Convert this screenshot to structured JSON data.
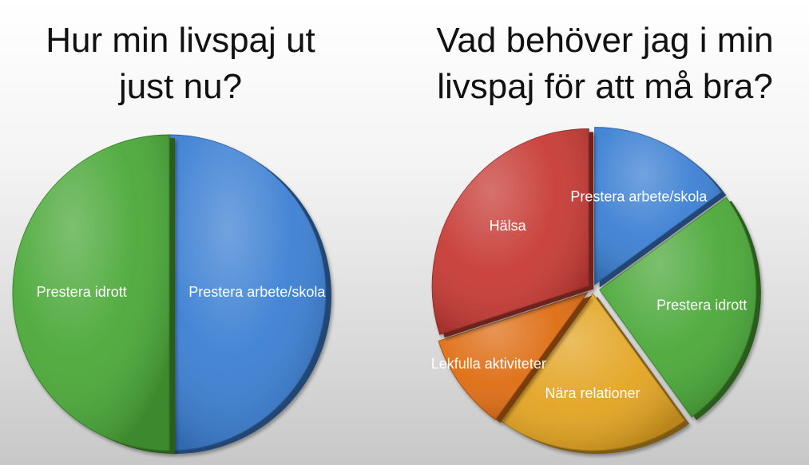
{
  "charts": [
    {
      "title_line1": "Hur min livspaj ut",
      "title_line2": "just nu?"
    },
    {
      "title_line1": "Vad behöver jag i min",
      "title_line2": "livspaj för att må bra?"
    }
  ],
  "chart_data": [
    {
      "type": "pie",
      "title": "Hur min livspaj ut just nu?",
      "slices": [
        {
          "label": "Prestera arbete/skola",
          "value": 50,
          "color": "#3b7fd3"
        },
        {
          "label": "Prestera idrott",
          "value": 50,
          "color": "#4aa838"
        }
      ]
    },
    {
      "type": "pie",
      "title": "Vad behöver jag i min livspaj för att må bra?",
      "slices": [
        {
          "label": "Prestera arbete/skola",
          "value": 15,
          "color": "#3b7fd3"
        },
        {
          "label": "Prestera idrott",
          "value": 25,
          "color": "#4aa838"
        },
        {
          "label": "Nära relationer",
          "value": 20,
          "color": "#e3a421"
        },
        {
          "label": "Lekfulla aktiviteter",
          "value": 10,
          "color": "#de6c12"
        },
        {
          "label": "Hälsa",
          "value": 30,
          "color": "#c73a34"
        }
      ]
    }
  ]
}
